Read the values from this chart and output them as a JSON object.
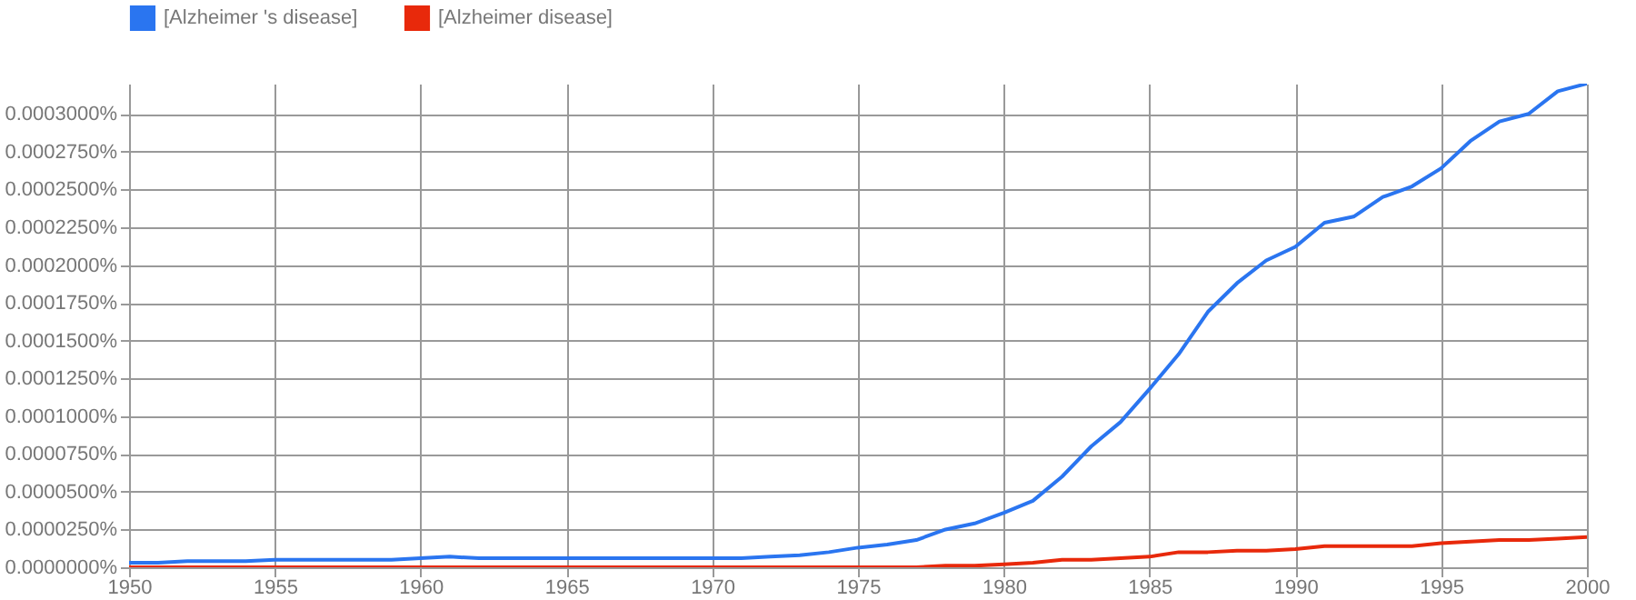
{
  "chart_data": {
    "type": "line",
    "x": [
      1950,
      1951,
      1952,
      1953,
      1954,
      1955,
      1956,
      1957,
      1958,
      1959,
      1960,
      1961,
      1962,
      1963,
      1964,
      1965,
      1966,
      1967,
      1968,
      1969,
      1970,
      1971,
      1972,
      1973,
      1974,
      1975,
      1976,
      1977,
      1978,
      1979,
      1980,
      1981,
      1982,
      1983,
      1984,
      1985,
      1986,
      1987,
      1988,
      1989,
      1990,
      1991,
      1992,
      1993,
      1994,
      1995,
      1996,
      1997,
      1998,
      1999,
      2000
    ],
    "series": [
      {
        "name": "[Alzheimer 's disease]",
        "color": "#2a75f0",
        "values": [
          3e-06,
          3e-06,
          4e-06,
          4e-06,
          4e-06,
          5e-06,
          5e-06,
          5e-06,
          5e-06,
          5e-06,
          6e-06,
          7e-06,
          6e-06,
          6e-06,
          6e-06,
          6e-06,
          6e-06,
          6e-06,
          6e-06,
          6e-06,
          6e-06,
          6e-06,
          7e-06,
          8e-06,
          1e-05,
          1.3e-05,
          1.5e-05,
          1.8e-05,
          2.5e-05,
          2.9e-05,
          3.6e-05,
          4.4e-05,
          6e-05,
          8e-05,
          9.6e-05,
          0.000118,
          0.000141,
          0.000169,
          0.000188,
          0.000203,
          0.000212,
          0.000228,
          0.000232,
          0.000245,
          0.000252,
          0.000264,
          0.000282,
          0.000295,
          0.0003,
          0.000315,
          0.00032
        ]
      },
      {
        "name": "[Alzheimer disease]",
        "color": "#e8290b",
        "values": [
          0,
          0,
          0,
          0,
          0,
          0,
          0,
          0,
          0,
          0,
          0,
          0,
          0,
          0,
          0,
          0,
          0,
          0,
          0,
          0,
          0,
          0,
          0,
          0,
          0,
          0,
          0,
          0,
          1e-06,
          1e-06,
          2e-06,
          3e-06,
          5e-06,
          5e-06,
          6e-06,
          7e-06,
          1e-05,
          1e-05,
          1.1e-05,
          1.1e-05,
          1.2e-05,
          1.4e-05,
          1.4e-05,
          1.4e-05,
          1.4e-05,
          1.6e-05,
          1.7e-05,
          1.8e-05,
          1.8e-05,
          1.9e-05,
          2e-05
        ]
      }
    ],
    "xlim": [
      1950,
      2000
    ],
    "xticks": [
      1950,
      1955,
      1960,
      1965,
      1970,
      1975,
      1980,
      1985,
      1990,
      1995,
      2000
    ],
    "ylim": [
      0,
      0.00032
    ],
    "yticks": [
      {
        "value": 0,
        "label": "0.0000000%"
      },
      {
        "value": 2.5e-05,
        "label": "0.0000250%"
      },
      {
        "value": 5e-05,
        "label": "0.0000500%"
      },
      {
        "value": 7.5e-05,
        "label": "0.0000750%"
      },
      {
        "value": 0.0001,
        "label": "0.0001000%"
      },
      {
        "value": 0.000125,
        "label": "0.0001250%"
      },
      {
        "value": 0.00015,
        "label": "0.0001500%"
      },
      {
        "value": 0.000175,
        "label": "0.0001750%"
      },
      {
        "value": 0.0002,
        "label": "0.0002000%"
      },
      {
        "value": 0.000225,
        "label": "0.0002250%"
      },
      {
        "value": 0.00025,
        "label": "0.0002500%"
      },
      {
        "value": 0.000275,
        "label": "0.0002750%"
      },
      {
        "value": 0.0003,
        "label": "0.0003000%"
      }
    ],
    "grid": true,
    "legend": "top",
    "marker": "none",
    "line_style": "solid"
  }
}
